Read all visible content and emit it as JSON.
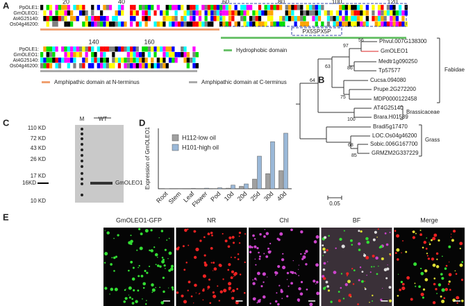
{
  "panels": [
    "A",
    "B",
    "C",
    "D",
    "E"
  ],
  "alignment": {
    "sequences": [
      "PpOLE1:",
      "GmOLEO1:",
      "At4G25140:",
      "Os04g46200:"
    ],
    "positions": [
      "20",
      "40",
      "60",
      "80",
      "100",
      "120",
      "140",
      "160"
    ],
    "motif": "PX5SPX5P",
    "legend": [
      "Amphipathic domain at N-terminus",
      "Amphipathic domain at C-terminus",
      "Hydrophobic domain"
    ]
  },
  "tree": {
    "leaves": [
      "Phvul.007G138300",
      "GmOLEO1",
      "Medtr1g090250",
      "Tp57577",
      "Cucsa.094080",
      "Prupe.2G272200",
      "MDP0000122458",
      "AT4G25140",
      "Brara.H01589",
      "Bradi5g17470",
      "LOC.Os04g46200",
      "Sobic.006G167700",
      "GRMZM2G337229"
    ],
    "bootstrap": [
      "56",
      "97",
      "86",
      "63",
      "75",
      "64",
      "100",
      "68",
      "85"
    ],
    "groups": [
      "Fabidae",
      "Brassicaceae",
      "Grass"
    ],
    "scale": "0.05"
  },
  "gel": {
    "lanes": [
      "M",
      "WT"
    ],
    "markers": [
      "110 KD",
      "72 KD",
      "43 KD",
      "26 KD",
      "17 KD",
      "16KD",
      "10 KD"
    ],
    "band": "GmOLEO1"
  },
  "chart_data": {
    "type": "bar",
    "ylabel": "Expression of GmOLEO1",
    "categories": [
      "Root",
      "Stem",
      "Leaf",
      "Flower",
      "Pod",
      "10d",
      "20d",
      "25d",
      "30d",
      "40d"
    ],
    "series": [
      {
        "name": "H112-low oil",
        "color": "#a0a0a0",
        "values": [
          0,
          0,
          0,
          0,
          2,
          5,
          20,
          80,
          125,
          150
        ]
      },
      {
        "name": "H101-high oil",
        "color": "#9ab8d8",
        "values": [
          1,
          2,
          3,
          5,
          8,
          30,
          40,
          270,
          390,
          460
        ]
      }
    ],
    "ylim": [
      0,
      500
    ]
  },
  "images": [
    "GmOLEO1-GFP",
    "NR",
    "Chl",
    "BF",
    "Merge"
  ]
}
